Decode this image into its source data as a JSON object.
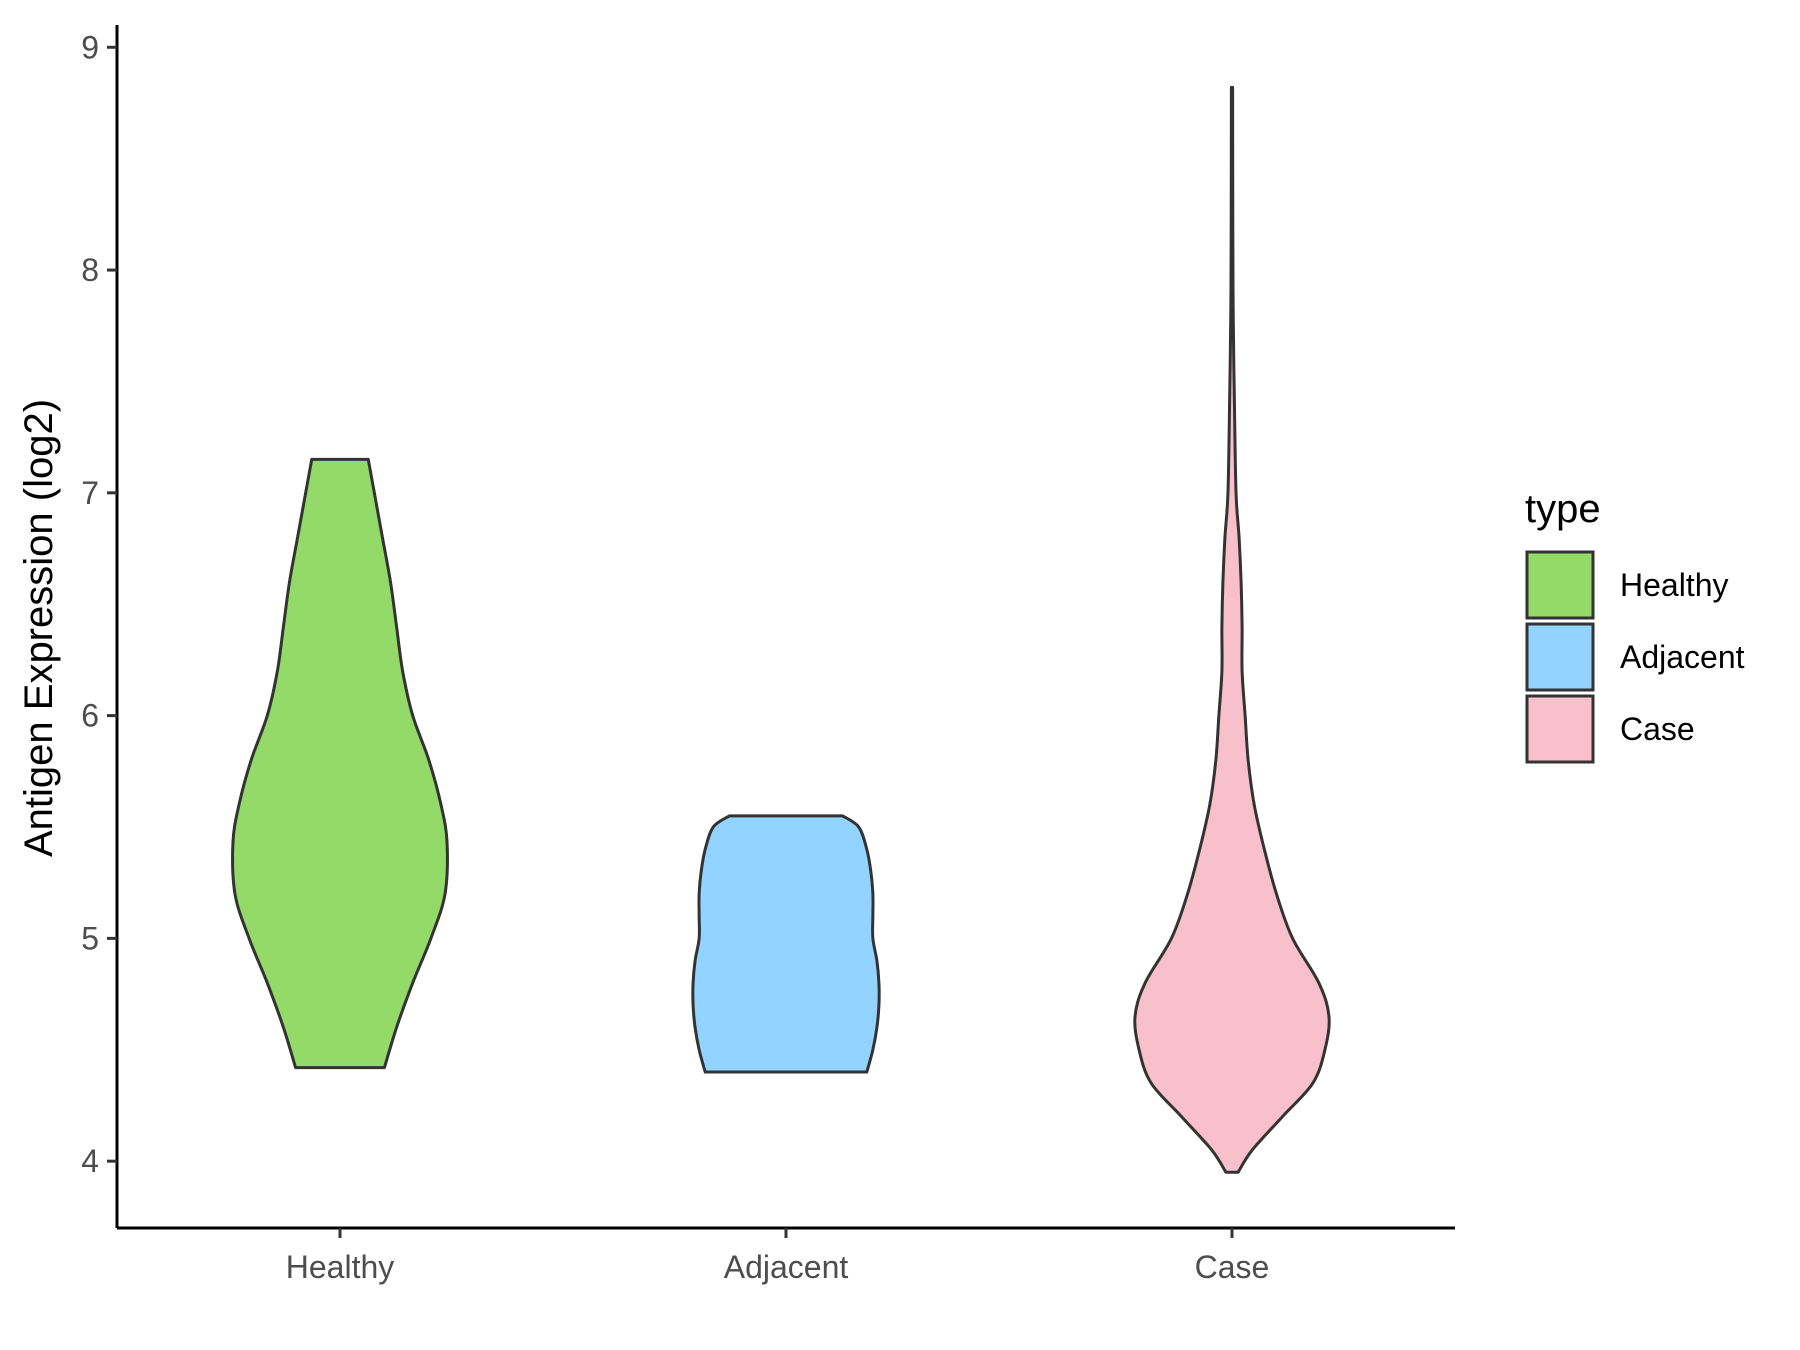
{
  "chart_data": {
    "type": "violin",
    "title": "",
    "xlabel": "",
    "ylabel": "Antigen Expression (log2)",
    "ylim": [
      3.7,
      9.1
    ],
    "yticks": [
      4,
      5,
      6,
      7,
      8,
      9
    ],
    "categories": [
      "Healthy",
      "Adjacent",
      "Case"
    ],
    "grid": false,
    "legend": {
      "title": "type",
      "placement": "right",
      "entries": [
        "Healthy",
        "Adjacent",
        "Case"
      ]
    },
    "series": [
      {
        "category": "Healthy",
        "color": "#93DA69",
        "min": 4.42,
        "max": 7.15,
        "profile": [
          [
            4.42,
            0.22
          ],
          [
            4.6,
            0.28
          ],
          [
            4.8,
            0.36
          ],
          [
            5.0,
            0.45
          ],
          [
            5.2,
            0.52
          ],
          [
            5.43,
            0.53
          ],
          [
            5.6,
            0.5
          ],
          [
            5.8,
            0.44
          ],
          [
            6.0,
            0.36
          ],
          [
            6.2,
            0.31
          ],
          [
            6.4,
            0.28
          ],
          [
            6.6,
            0.25
          ],
          [
            6.8,
            0.21
          ],
          [
            7.0,
            0.17
          ],
          [
            7.15,
            0.14
          ]
        ]
      },
      {
        "category": "Adjacent",
        "color": "#93D3FF",
        "min": 4.4,
        "max": 5.55,
        "profile": [
          [
            4.4,
            0.4
          ],
          [
            4.5,
            0.43
          ],
          [
            4.6,
            0.45
          ],
          [
            4.7,
            0.46
          ],
          [
            4.8,
            0.46
          ],
          [
            4.9,
            0.45
          ],
          [
            5.0,
            0.43
          ],
          [
            5.1,
            0.43
          ],
          [
            5.2,
            0.43
          ],
          [
            5.3,
            0.42
          ],
          [
            5.4,
            0.4
          ],
          [
            5.5,
            0.36
          ],
          [
            5.55,
            0.28
          ]
        ]
      },
      {
        "category": "Case",
        "color": "#F8C0CC",
        "min": 3.95,
        "max": 8.82,
        "profile": [
          [
            3.95,
            0.03
          ],
          [
            4.05,
            0.1
          ],
          [
            4.2,
            0.25
          ],
          [
            4.35,
            0.4
          ],
          [
            4.5,
            0.46
          ],
          [
            4.65,
            0.48
          ],
          [
            4.8,
            0.43
          ],
          [
            5.0,
            0.3
          ],
          [
            5.2,
            0.22
          ],
          [
            5.4,
            0.16
          ],
          [
            5.6,
            0.11
          ],
          [
            5.8,
            0.08
          ],
          [
            6.0,
            0.065
          ],
          [
            6.2,
            0.05
          ],
          [
            6.4,
            0.05
          ],
          [
            6.6,
            0.045
          ],
          [
            6.8,
            0.035
          ],
          [
            7.0,
            0.02
          ],
          [
            7.4,
            0.012
          ],
          [
            7.8,
            0.006
          ],
          [
            8.2,
            0.004
          ],
          [
            8.82,
            0.003
          ]
        ]
      }
    ]
  }
}
